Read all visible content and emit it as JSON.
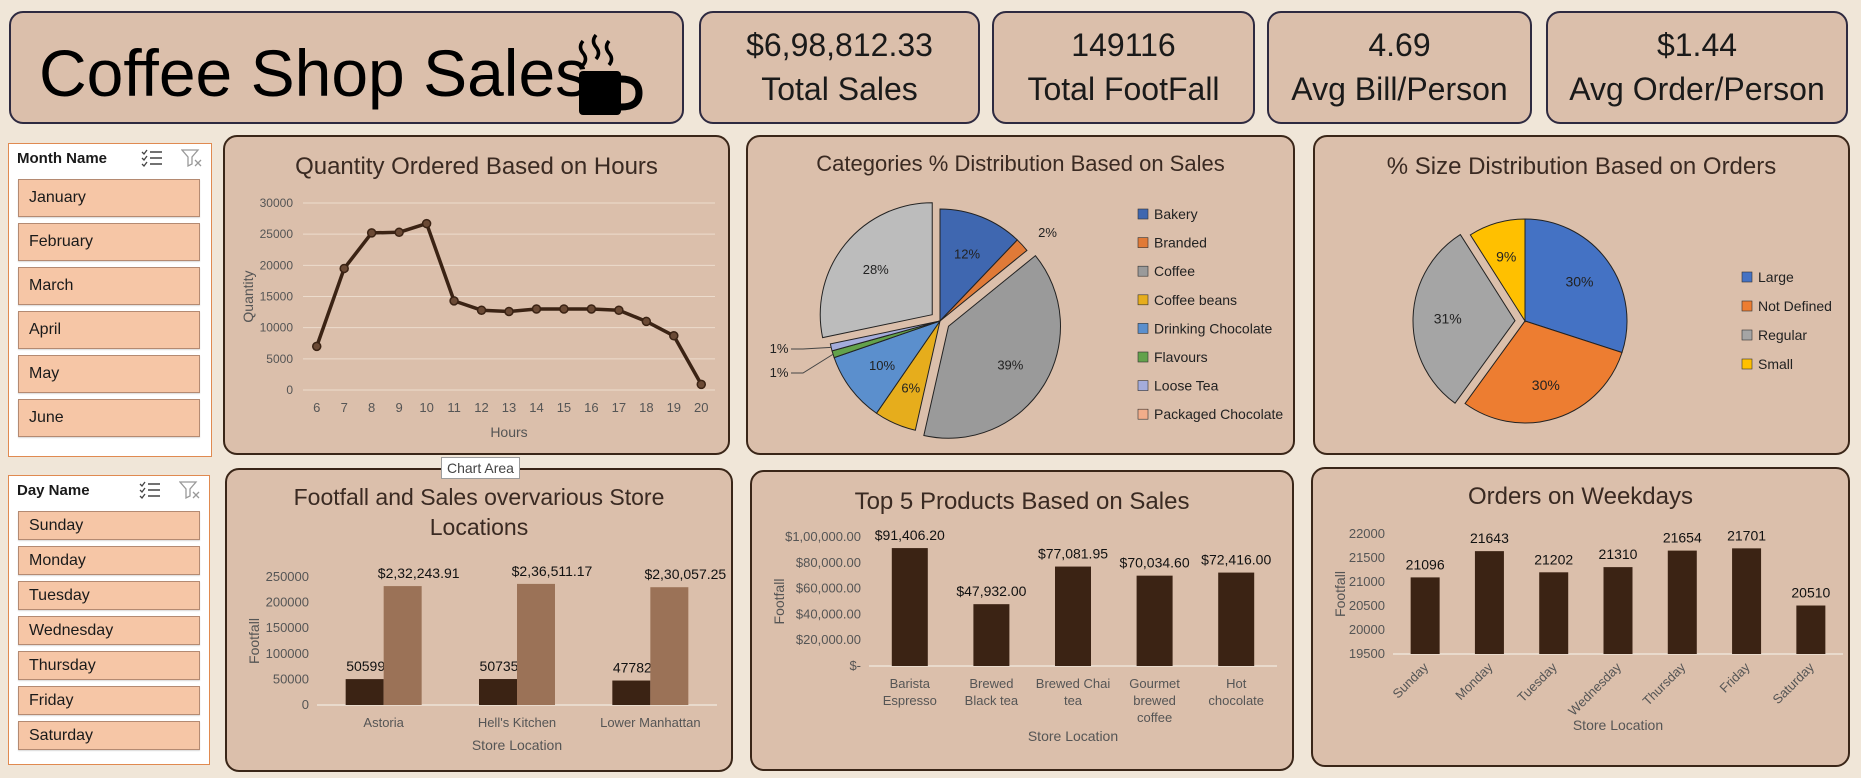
{
  "header": {
    "title": "Coffee Shop Sales"
  },
  "kpis": [
    {
      "value": "$6,98,812.33",
      "label": "Total Sales"
    },
    {
      "value": "149116",
      "label": "Total FootFall"
    },
    {
      "value": "4.69",
      "label": "Avg Bill/Person"
    },
    {
      "value": "$1.44",
      "label": "Avg Order/Person"
    }
  ],
  "month_slicer": {
    "title": "Month Name",
    "items": [
      "January",
      "February",
      "March",
      "April",
      "May",
      "June"
    ]
  },
  "day_slicer": {
    "title": "Day Name",
    "items": [
      "Sunday",
      "Monday",
      "Tuesday",
      "Wednesday",
      "Thursday",
      "Friday",
      "Saturday"
    ]
  },
  "tooltip": "Chart Area",
  "colors": {
    "dark_brown": "#3b2314",
    "light_brown": "#9b7257",
    "card_bg": "#dbbfab",
    "line": "#3b2314"
  },
  "chart_data": [
    {
      "type": "line",
      "title": "Quantity Ordered Based on Hours",
      "xlabel": "Hours",
      "ylabel": "Quantity",
      "x": [
        6,
        7,
        8,
        9,
        10,
        11,
        12,
        13,
        14,
        15,
        16,
        17,
        18,
        19,
        20
      ],
      "values": [
        7000,
        19500,
        25200,
        25300,
        26700,
        14300,
        12800,
        12600,
        13000,
        13000,
        13000,
        12800,
        11000,
        8700,
        900
      ],
      "ylim": [
        0,
        30000
      ],
      "yticks": [
        "0",
        "5000",
        "10000",
        "15000",
        "20000",
        "25000",
        "30000"
      ],
      "grid": true
    },
    {
      "type": "pie",
      "title": "Categories % Distribution Based on Sales",
      "legend_position": "right",
      "categories": [
        "Bakery",
        "Branded",
        "Coffee",
        "Coffee beans",
        "Drinking Chocolate",
        "Flavours",
        "Loose Tea",
        "Packaged Chocolate"
      ],
      "values": [
        12,
        2,
        39,
        6,
        10,
        1,
        1,
        28
      ],
      "labels": [
        "12%",
        "2%",
        "39%",
        "6%",
        "10%",
        "1%",
        "1%",
        "28%"
      ],
      "colors": [
        "#3f67b0",
        "#e07a37",
        "#9a9a9a",
        "#e6ad1c",
        "#5b8fcd",
        "#63a24b",
        "#a4acdb",
        "#bcbcbc"
      ],
      "legend_swatches": [
        "#3f67b0",
        "#e07a37",
        "#9a9a9a",
        "#e6ad1c",
        "#5b8fcd",
        "#63a24b",
        "#a4acdb",
        "#f2ad8a"
      ]
    },
    {
      "type": "pie",
      "title": "% Size Distribution Based on Orders",
      "legend_position": "right",
      "categories": [
        "Large",
        "Not Defined",
        "Regular",
        "Small"
      ],
      "values": [
        30,
        30,
        31,
        9
      ],
      "labels": [
        "30%",
        "30%",
        "31%",
        "9%"
      ],
      "colors": [
        "#4472c4",
        "#ed7d31",
        "#a5a5a5",
        "#ffc000"
      ]
    },
    {
      "type": "bar",
      "title": "Footfall and Sales overvarious Store Locations",
      "xlabel": "Store Location",
      "ylabel": "Footfall",
      "categories": [
        "Astoria",
        "Hell's Kitchen",
        "Lower Manhattan"
      ],
      "series": [
        {
          "values": [
            50599,
            50735,
            47782
          ],
          "labels": [
            "50599",
            "50735",
            "47782"
          ]
        },
        {
          "values": [
            232243.91,
            236511.17,
            230057.25
          ],
          "labels": [
            "$2,32,243.91",
            "$2,36,511.17",
            "$2,30,057.25"
          ]
        }
      ],
      "ylim": [
        0,
        250000
      ],
      "yticks": [
        "0",
        "50000",
        "100000",
        "150000",
        "200000",
        "250000"
      ]
    },
    {
      "type": "bar",
      "title": "Top 5 Products Based on Sales",
      "xlabel": "Store Location",
      "ylabel": "Footfall",
      "categories": [
        "Barista Espresso",
        "Brewed Black tea",
        "Brewed Chai tea",
        "Gourmet brewed coffee",
        "Hot chocolate"
      ],
      "category_lines": [
        [
          "Barista",
          "Espresso"
        ],
        [
          "Brewed",
          "Black tea"
        ],
        [
          "Brewed Chai",
          "tea"
        ],
        [
          "Gourmet",
          "brewed",
          "coffee"
        ],
        [
          "Hot",
          "chocolate"
        ]
      ],
      "values": [
        91406.2,
        47932.0,
        77081.95,
        70034.6,
        72416.0
      ],
      "labels": [
        "$91,406.20",
        "$47,932.00",
        "$77,081.95",
        "$70,034.60",
        "$72,416.00"
      ],
      "ylim": [
        0,
        100000
      ],
      "yticks": [
        "$-",
        "$20,000.00",
        "$40,000.00",
        "$60,000.00",
        "$80,000.00",
        "$1,00,000.00"
      ]
    },
    {
      "type": "bar",
      "title": "Orders on Weekdays",
      "xlabel": "Store Location",
      "ylabel": "Footfall",
      "categories": [
        "Sunday",
        "Monday",
        "Tuesday",
        "Wednesday",
        "Thursday",
        "Friday",
        "Saturday"
      ],
      "values": [
        21096,
        21643,
        21202,
        21310,
        21654,
        21701,
        20510
      ],
      "labels": [
        "21096",
        "21643",
        "21202",
        "21310",
        "21654",
        "21701",
        "20510"
      ],
      "ylim": [
        19500,
        22000
      ],
      "yticks": [
        "19500",
        "20000",
        "20500",
        "21000",
        "21500",
        "22000"
      ]
    }
  ]
}
